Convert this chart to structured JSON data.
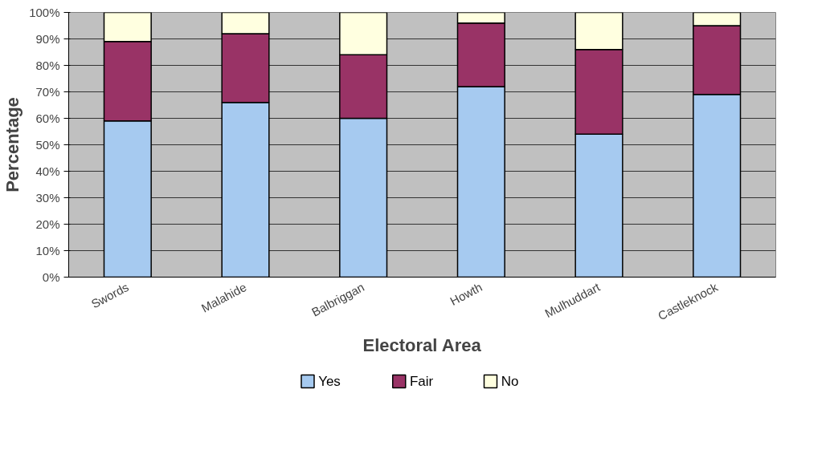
{
  "chart_data": {
    "type": "bar",
    "stacked": true,
    "xlabel": "Electoral Area",
    "ylabel": "Percentage",
    "categories": [
      "Swords",
      "Malahide",
      "Balbriggan",
      "Howth",
      "Mulhuddart",
      "Castleknock"
    ],
    "series": [
      {
        "name": "Yes",
        "color": "#a6caf0",
        "values": [
          59,
          66,
          60,
          72,
          54,
          69
        ]
      },
      {
        "name": "Fair",
        "color": "#993366",
        "values": [
          30,
          26,
          24,
          24,
          32,
          26
        ]
      },
      {
        "name": "No",
        "color": "#ffffe0",
        "values": [
          11,
          8,
          16,
          4,
          14,
          5
        ]
      }
    ],
    "ylim": [
      0,
      100
    ],
    "yticks": [
      {
        "value": 0,
        "label": "0%"
      },
      {
        "value": 10,
        "label": "10%"
      },
      {
        "value": 20,
        "label": "20%"
      },
      {
        "value": 30,
        "label": "30%"
      },
      {
        "value": 40,
        "label": "40%"
      },
      {
        "value": 50,
        "label": "50%"
      },
      {
        "value": 60,
        "label": "60%"
      },
      {
        "value": 70,
        "label": "70%"
      },
      {
        "value": 80,
        "label": "80%"
      },
      {
        "value": 90,
        "label": "90%"
      },
      {
        "value": 100,
        "label": "100%"
      }
    ],
    "grid": "y",
    "legend": "bottom"
  }
}
